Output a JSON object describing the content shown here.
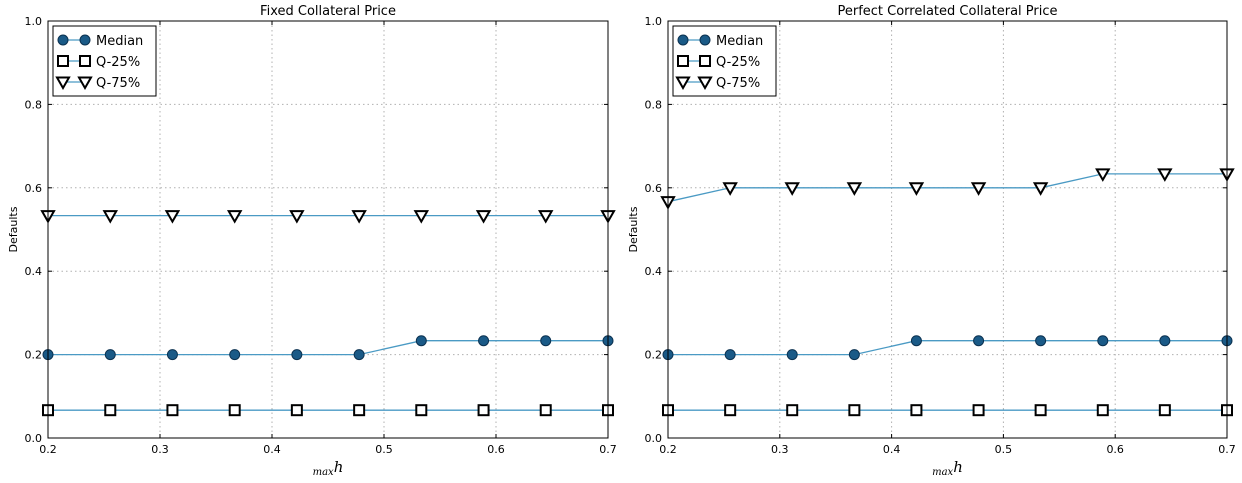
{
  "chart_data": [
    {
      "type": "line",
      "title": "Fixed Collateral Price",
      "xlabel_sub": "max",
      "xlabel_main": "h",
      "ylabel": "Defaults",
      "xlim": [
        0.2,
        0.7
      ],
      "ylim": [
        0.0,
        1.0
      ],
      "xticks": [
        "0.2",
        "0.3",
        "0.4",
        "0.5",
        "0.6",
        "0.7"
      ],
      "yticks": [
        "0.0",
        "0.2",
        "0.4",
        "0.6",
        "0.8",
        "1.0"
      ],
      "grid": true,
      "legend_position": "top-left",
      "x": [
        0.2,
        0.2556,
        0.3111,
        0.3667,
        0.4222,
        0.4778,
        0.5333,
        0.5889,
        0.6444,
        0.7
      ],
      "series": [
        {
          "name": "Median",
          "marker": "circle",
          "values": [
            0.2,
            0.2,
            0.2,
            0.2,
            0.2,
            0.2,
            0.2333,
            0.2333,
            0.2333,
            0.2333
          ]
        },
        {
          "name": "Q-25%",
          "marker": "square",
          "values": [
            0.0667,
            0.0667,
            0.0667,
            0.0667,
            0.0667,
            0.0667,
            0.0667,
            0.0667,
            0.0667,
            0.0667
          ]
        },
        {
          "name": "Q-75%",
          "marker": "triangle-down",
          "values": [
            0.5333,
            0.5333,
            0.5333,
            0.5333,
            0.5333,
            0.5333,
            0.5333,
            0.5333,
            0.5333,
            0.5333
          ]
        }
      ]
    },
    {
      "type": "line",
      "title": "Perfect Correlated Collateral Price",
      "xlabel_sub": "max",
      "xlabel_main": "h",
      "ylabel": "Defaults",
      "xlim": [
        0.2,
        0.7
      ],
      "ylim": [
        0.0,
        1.0
      ],
      "xticks": [
        "0.2",
        "0.3",
        "0.4",
        "0.5",
        "0.6",
        "0.7"
      ],
      "yticks": [
        "0.0",
        "0.2",
        "0.4",
        "0.6",
        "0.8",
        "1.0"
      ],
      "grid": true,
      "legend_position": "top-left",
      "x": [
        0.2,
        0.2556,
        0.3111,
        0.3667,
        0.4222,
        0.4778,
        0.5333,
        0.5889,
        0.6444,
        0.7
      ],
      "series": [
        {
          "name": "Median",
          "marker": "circle",
          "values": [
            0.2,
            0.2,
            0.2,
            0.2,
            0.2333,
            0.2333,
            0.2333,
            0.2333,
            0.2333,
            0.2333
          ]
        },
        {
          "name": "Q-25%",
          "marker": "square",
          "values": [
            0.0667,
            0.0667,
            0.0667,
            0.0667,
            0.0667,
            0.0667,
            0.0667,
            0.0667,
            0.0667,
            0.0667
          ]
        },
        {
          "name": "Q-75%",
          "marker": "triangle-down",
          "values": [
            0.5667,
            0.6,
            0.6,
            0.6,
            0.6,
            0.6,
            0.6,
            0.6333,
            0.6333,
            0.6333
          ]
        }
      ]
    }
  ],
  "colors": {
    "line": "#4a9ac4",
    "median_fill": "#1a5a87",
    "median_edge": "#0b3150",
    "marker_edge": "#000000",
    "open_marker_fill": "#ffffff"
  }
}
